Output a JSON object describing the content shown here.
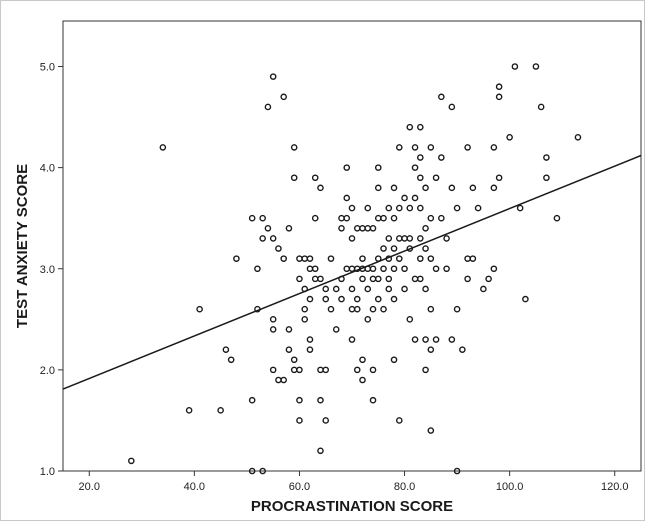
{
  "chart_data": {
    "type": "scatter",
    "title": "",
    "xlabel": "PROCRASTINATION SCORE",
    "ylabel": "TEST ANXIETY SCORE",
    "xlim": [
      15,
      125
    ],
    "ylim": [
      1.0,
      5.45
    ],
    "xticks": [
      20,
      40,
      60,
      80,
      100,
      120
    ],
    "xtick_labels": [
      "20.0",
      "40.0",
      "60.0",
      "80.0",
      "100.0",
      "120.0"
    ],
    "yticks": [
      1.0,
      2.0,
      3.0,
      4.0,
      5.0
    ],
    "ytick_labels": [
      "1.0",
      "2.0",
      "3.0",
      "4.0",
      "5.0"
    ],
    "grid": false,
    "point_color": "#1a1a1a",
    "fit_line": {
      "x": [
        15,
        125
      ],
      "y": [
        1.81,
        4.12
      ]
    },
    "points": [
      [
        28,
        1.1
      ],
      [
        34,
        4.2
      ],
      [
        39,
        1.6
      ],
      [
        41,
        2.6
      ],
      [
        45,
        1.6
      ],
      [
        46,
        2.2
      ],
      [
        47,
        2.1
      ],
      [
        48,
        3.1
      ],
      [
        51,
        1.7
      ],
      [
        51,
        1.0
      ],
      [
        51,
        3.5
      ],
      [
        52,
        2.6
      ],
      [
        52,
        3.0
      ],
      [
        53,
        3.5
      ],
      [
        53,
        3.3
      ],
      [
        53,
        1.0
      ],
      [
        54,
        4.6
      ],
      [
        54,
        3.4
      ],
      [
        55,
        4.9
      ],
      [
        55,
        3.3
      ],
      [
        55,
        2.5
      ],
      [
        55,
        2.4
      ],
      [
        55,
        2.0
      ],
      [
        56,
        3.2
      ],
      [
        56,
        1.9
      ],
      [
        57,
        4.7
      ],
      [
        57,
        3.1
      ],
      [
        57,
        1.9
      ],
      [
        58,
        3.4
      ],
      [
        58,
        2.4
      ],
      [
        58,
        2.2
      ],
      [
        59,
        4.2
      ],
      [
        59,
        3.9
      ],
      [
        59,
        2.1
      ],
      [
        59,
        2.0
      ],
      [
        60,
        3.1
      ],
      [
        60,
        2.9
      ],
      [
        60,
        2.0
      ],
      [
        60,
        1.7
      ],
      [
        60,
        1.5
      ],
      [
        61,
        3.1
      ],
      [
        61,
        2.8
      ],
      [
        61,
        2.6
      ],
      [
        61,
        2.5
      ],
      [
        62,
        3.1
      ],
      [
        62,
        3.0
      ],
      [
        62,
        2.7
      ],
      [
        62,
        2.3
      ],
      [
        62,
        2.2
      ],
      [
        63,
        3.9
      ],
      [
        63,
        3.5
      ],
      [
        63,
        3.0
      ],
      [
        63,
        2.9
      ],
      [
        64,
        3.8
      ],
      [
        64,
        2.9
      ],
      [
        64,
        2.0
      ],
      [
        64,
        1.7
      ],
      [
        64,
        1.2
      ],
      [
        65,
        2.8
      ],
      [
        65,
        2.7
      ],
      [
        65,
        2.0
      ],
      [
        65,
        1.5
      ],
      [
        66,
        3.1
      ],
      [
        66,
        2.6
      ],
      [
        67,
        2.8
      ],
      [
        67,
        2.4
      ],
      [
        68,
        3.5
      ],
      [
        68,
        3.4
      ],
      [
        68,
        2.9
      ],
      [
        68,
        2.7
      ],
      [
        69,
        4.0
      ],
      [
        69,
        3.7
      ],
      [
        69,
        3.5
      ],
      [
        69,
        3.0
      ],
      [
        70,
        3.6
      ],
      [
        70,
        3.3
      ],
      [
        70,
        3.0
      ],
      [
        70,
        2.8
      ],
      [
        70,
        2.6
      ],
      [
        70,
        2.3
      ],
      [
        71,
        3.4
      ],
      [
        71,
        3.0
      ],
      [
        71,
        2.7
      ],
      [
        71,
        2.6
      ],
      [
        71,
        2.0
      ],
      [
        72,
        3.4
      ],
      [
        72,
        3.1
      ],
      [
        72,
        3.0
      ],
      [
        72,
        2.9
      ],
      [
        72,
        2.1
      ],
      [
        72,
        1.9
      ],
      [
        73,
        3.6
      ],
      [
        73,
        3.4
      ],
      [
        73,
        3.0
      ],
      [
        73,
        2.8
      ],
      [
        73,
        2.5
      ],
      [
        74,
        3.4
      ],
      [
        74,
        3.0
      ],
      [
        74,
        2.9
      ],
      [
        74,
        2.6
      ],
      [
        74,
        2.0
      ],
      [
        74,
        1.7
      ],
      [
        75,
        4.0
      ],
      [
        75,
        3.8
      ],
      [
        75,
        3.5
      ],
      [
        75,
        3.1
      ],
      [
        75,
        2.9
      ],
      [
        75,
        2.7
      ],
      [
        76,
        3.5
      ],
      [
        76,
        3.2
      ],
      [
        76,
        3.0
      ],
      [
        76,
        2.6
      ],
      [
        77,
        3.6
      ],
      [
        77,
        3.3
      ],
      [
        77,
        3.1
      ],
      [
        77,
        2.9
      ],
      [
        77,
        2.8
      ],
      [
        78,
        3.8
      ],
      [
        78,
        3.5
      ],
      [
        78,
        3.2
      ],
      [
        78,
        3.0
      ],
      [
        78,
        2.7
      ],
      [
        78,
        2.1
      ],
      [
        79,
        4.2
      ],
      [
        79,
        3.6
      ],
      [
        79,
        3.3
      ],
      [
        79,
        3.1
      ],
      [
        79,
        1.5
      ],
      [
        80,
        3.7
      ],
      [
        80,
        3.3
      ],
      [
        80,
        3.0
      ],
      [
        80,
        2.8
      ],
      [
        81,
        4.4
      ],
      [
        81,
        3.6
      ],
      [
        81,
        3.3
      ],
      [
        81,
        3.2
      ],
      [
        81,
        2.5
      ],
      [
        82,
        4.2
      ],
      [
        82,
        4.0
      ],
      [
        82,
        3.7
      ],
      [
        82,
        2.9
      ],
      [
        82,
        2.3
      ],
      [
        83,
        4.4
      ],
      [
        83,
        4.1
      ],
      [
        83,
        3.9
      ],
      [
        83,
        3.6
      ],
      [
        83,
        3.3
      ],
      [
        83,
        3.1
      ],
      [
        83,
        2.9
      ],
      [
        84,
        3.8
      ],
      [
        84,
        3.4
      ],
      [
        84,
        3.2
      ],
      [
        84,
        2.8
      ],
      [
        84,
        2.3
      ],
      [
        84,
        2.0
      ],
      [
        85,
        4.2
      ],
      [
        85,
        3.5
      ],
      [
        85,
        3.1
      ],
      [
        85,
        2.6
      ],
      [
        85,
        2.2
      ],
      [
        85,
        1.4
      ],
      [
        86,
        3.9
      ],
      [
        86,
        3.0
      ],
      [
        86,
        2.3
      ],
      [
        87,
        4.7
      ],
      [
        87,
        4.1
      ],
      [
        87,
        3.5
      ],
      [
        88,
        3.3
      ],
      [
        88,
        3.0
      ],
      [
        89,
        4.6
      ],
      [
        89,
        3.8
      ],
      [
        89,
        2.3
      ],
      [
        90,
        3.6
      ],
      [
        90,
        2.6
      ],
      [
        90,
        1.0
      ],
      [
        91,
        2.2
      ],
      [
        92,
        4.2
      ],
      [
        92,
        3.1
      ],
      [
        92,
        2.9
      ],
      [
        93,
        3.8
      ],
      [
        93,
        3.1
      ],
      [
        94,
        3.6
      ],
      [
        95,
        2.8
      ],
      [
        96,
        2.9
      ],
      [
        97,
        4.2
      ],
      [
        97,
        3.8
      ],
      [
        97,
        3.0
      ],
      [
        98,
        4.8
      ],
      [
        98,
        4.7
      ],
      [
        98,
        3.9
      ],
      [
        100,
        4.3
      ],
      [
        101,
        5.0
      ],
      [
        102,
        3.6
      ],
      [
        103,
        2.7
      ],
      [
        105,
        5.0
      ],
      [
        106,
        4.6
      ],
      [
        107,
        4.1
      ],
      [
        107,
        3.9
      ],
      [
        109,
        3.5
      ],
      [
        113,
        4.3
      ]
    ]
  }
}
